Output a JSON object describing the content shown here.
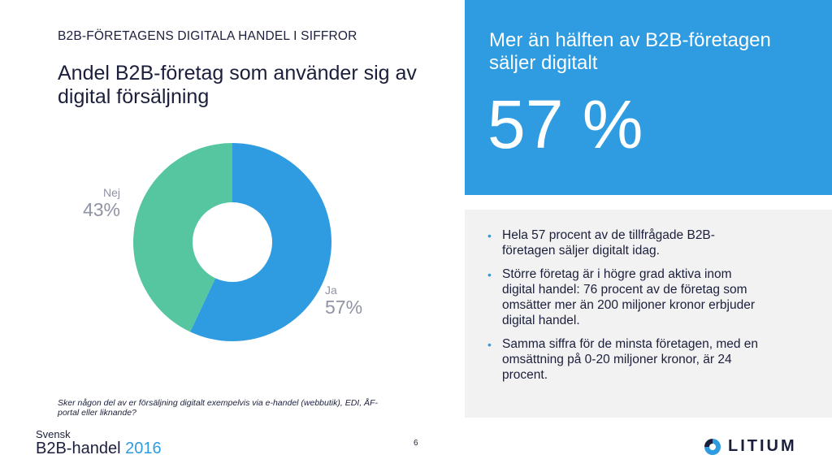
{
  "header": {
    "kicker": "B2B-FÖRETAGENS DIGITALA HANDEL I SIFFROR",
    "title": "Andel B2B-företag som använder sig av digital försäljning"
  },
  "chart_data": {
    "type": "pie",
    "donut": true,
    "categories": [
      "Ja",
      "Nej"
    ],
    "values": [
      57,
      43
    ],
    "value_labels": [
      "57%",
      "43%"
    ],
    "colors": [
      "#2f9be0",
      "#55c6a0"
    ]
  },
  "footnote": "Sker någon del av er försäljning digitalt exempelvis via e-handel (webbutik), EDI, ÅF-portal eller liknande?",
  "highlight": {
    "title": "Mer än hälften av B2B-företagen säljer digitalt",
    "value": "57 %"
  },
  "bullets": [
    "Hela 57 procent av de tillfrågade B2B-företagen säljer digitalt idag.",
    "Större företag är i högre grad aktiva inom digital handel: 76 procent av de företag som omsätter mer än 200 miljoner kronor erbjuder digital handel.",
    "Samma siffra för de minsta företagen, med en omsättning på 0-20 miljoner kronor, är 24 procent."
  ],
  "brand": {
    "line1": "Svensk",
    "line2": "B2B-handel",
    "year": "2016"
  },
  "page_number": "6",
  "logo": "LITIUM"
}
